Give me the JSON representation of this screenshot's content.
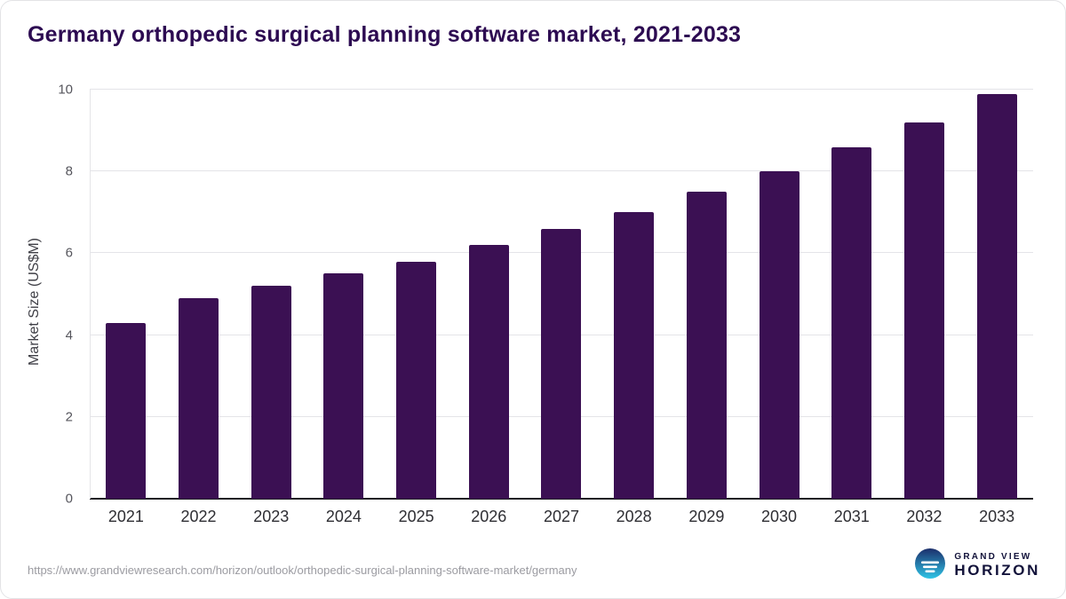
{
  "title": "Germany orthopedic surgical planning software market, 2021-2033",
  "source_url": "https://www.grandviewresearch.com/horizon/outlook/orthopedic-surgical-planning-software-market/germany",
  "logo": {
    "line1": "GRAND VIEW",
    "line2": "HORIZON",
    "icon": "horizon-sun-icon"
  },
  "colors": {
    "bar": "#3b1053",
    "title": "#2d0b52",
    "gridline": "#e4e4e8",
    "axis_baseline": "#1f1f24",
    "tick_label": "#55555c",
    "source_text": "#9b9ba1",
    "logo_text": "#12123a",
    "logo_icon_top": "#1c2e6b",
    "logo_icon_bottom": "#2ec4e6"
  },
  "chart_data": {
    "type": "bar",
    "title": "Germany orthopedic surgical planning software market, 2021-2033",
    "xlabel": "",
    "ylabel": "Market Size (US$M)",
    "categories": [
      "2021",
      "2022",
      "2023",
      "2024",
      "2025",
      "2026",
      "2027",
      "2028",
      "2029",
      "2030",
      "2031",
      "2032",
      "2033"
    ],
    "values": [
      4.3,
      4.9,
      5.2,
      5.5,
      5.8,
      6.2,
      6.6,
      7.0,
      7.5,
      8.0,
      8.6,
      9.2,
      9.9
    ],
    "ylim": [
      0,
      10
    ],
    "yticks": [
      0,
      2,
      4,
      6,
      8,
      10
    ],
    "grid": "horizontal",
    "legend": "none",
    "bar_color": "#3b1053"
  }
}
